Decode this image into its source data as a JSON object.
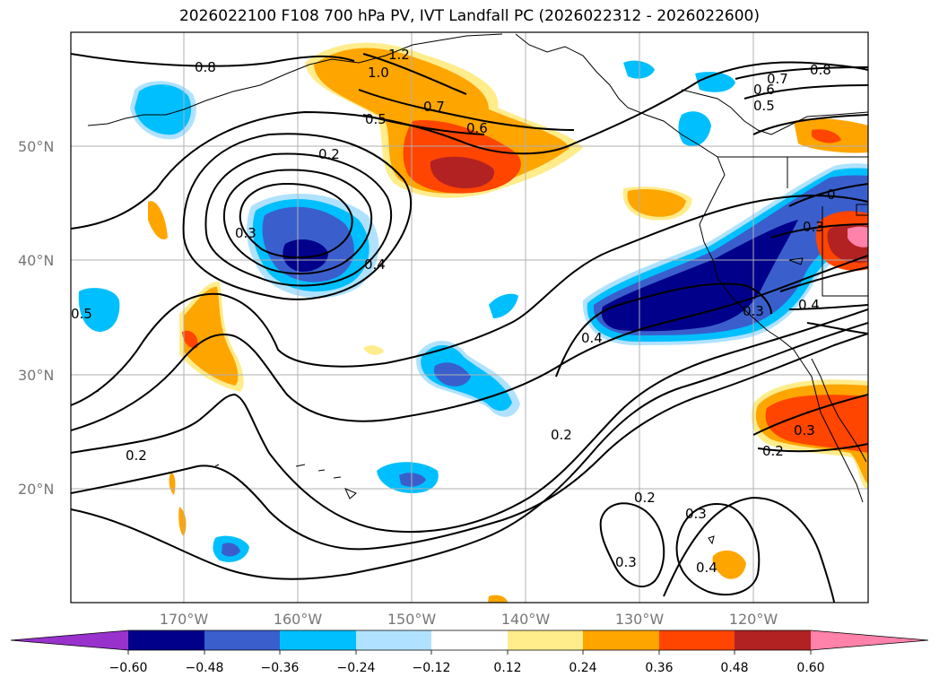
{
  "title": "2026022100 F108 700 hPa PV, IVT Landfall PC (2026022312 - 2026022600)",
  "lat_labels": [
    "50°N",
    "40°N",
    "30°N",
    "20°N"
  ],
  "lon_labels": [
    "170°W",
    "160°W",
    "150°W",
    "140°W",
    "130°W",
    "120°W"
  ],
  "contour_labels": [
    {
      "text": "0.8"
    },
    {
      "text": "1.2"
    },
    {
      "text": "1.0"
    },
    {
      "text": "0.7"
    },
    {
      "text": "0.5"
    },
    {
      "text": "0.6"
    },
    {
      "text": "0.2"
    },
    {
      "text": "0.3"
    },
    {
      "text": "0.4"
    },
    {
      "text": "0.5"
    },
    {
      "text": "0.4"
    },
    {
      "text": "0.3"
    },
    {
      "text": "0.4"
    },
    {
      "text": "0.2"
    },
    {
      "text": "0.2"
    },
    {
      "text": "0.2"
    },
    {
      "text": "0.3"
    },
    {
      "text": "0.3"
    },
    {
      "text": "0.4"
    },
    {
      "text": "0.3"
    },
    {
      "text": "0.2"
    },
    {
      "text": "0.8"
    },
    {
      "text": "0.7"
    },
    {
      "text": "0.6"
    },
    {
      "text": "0.5"
    },
    {
      "text": "0.3"
    },
    {
      "text": "0"
    }
  ],
  "colorbar": {
    "ticks": [
      "−0.60",
      "−0.48",
      "−0.36",
      "−0.24",
      "−0.12",
      "0.12",
      "0.24",
      "0.36",
      "0.48",
      "0.60"
    ],
    "colors": [
      "#9932cc",
      "#00008b",
      "#3a5fcd",
      "#00bfff",
      "#b0e2ff",
      "#ffffff",
      "#ffec8b",
      "#ffa500",
      "#ff4500",
      "#b22222",
      "#ff82ab"
    ]
  }
}
